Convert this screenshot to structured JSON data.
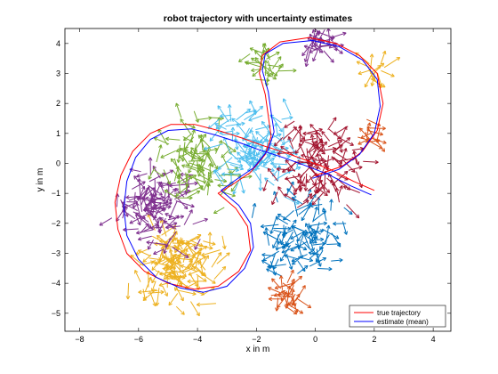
{
  "chart_data": {
    "type": "line",
    "title": "robot trajectory with uncertainty estimates",
    "xlabel": "x in m",
    "ylabel": "y in m",
    "xlim": [
      -8.5,
      4.6
    ],
    "ylim": [
      -5.6,
      4.5
    ],
    "xticks": [
      -8,
      -6,
      -4,
      -2,
      0,
      2,
      4
    ],
    "yticks": [
      -5,
      -4,
      -3,
      -2,
      -1,
      0,
      1,
      2,
      3,
      4
    ],
    "grid": false,
    "legend_position": "bottom-right",
    "series": [
      {
        "name": "true trajectory",
        "color": "#ff0000",
        "points": [
          [
            2.0,
            -0.9
          ],
          [
            1.3,
            -0.6
          ],
          [
            0.5,
            -0.2
          ],
          [
            -0.3,
            0.1
          ],
          [
            -1.0,
            0.35
          ],
          [
            -1.8,
            0.6
          ],
          [
            -2.5,
            0.85
          ],
          [
            -3.3,
            1.1
          ],
          [
            -4.1,
            1.3
          ],
          [
            -4.9,
            1.3
          ],
          [
            -5.6,
            1.0
          ],
          [
            -6.2,
            0.4
          ],
          [
            -6.6,
            -0.4
          ],
          [
            -6.8,
            -1.3
          ],
          [
            -6.7,
            -2.2
          ],
          [
            -6.4,
            -3.0
          ],
          [
            -5.8,
            -3.6
          ],
          [
            -5.0,
            -4.0
          ],
          [
            -4.1,
            -4.2
          ],
          [
            -3.3,
            -4.1
          ],
          [
            -2.6,
            -3.6
          ],
          [
            -2.2,
            -2.9
          ],
          [
            -2.3,
            -2.1
          ],
          [
            -2.7,
            -1.5
          ],
          [
            -3.3,
            -1.0
          ],
          [
            -2.8,
            -0.7
          ],
          [
            -2.2,
            -0.3
          ],
          [
            -1.7,
            0.3
          ],
          [
            -1.5,
            0.9
          ],
          [
            -1.6,
            1.6
          ],
          [
            -1.7,
            2.3
          ],
          [
            -1.9,
            3.0
          ],
          [
            -1.8,
            3.6
          ],
          [
            -1.2,
            4.05
          ],
          [
            -0.2,
            4.2
          ],
          [
            0.7,
            4.0
          ],
          [
            1.5,
            3.6
          ],
          [
            2.1,
            3.0
          ],
          [
            2.3,
            2.0
          ],
          [
            2.1,
            1.1
          ],
          [
            1.6,
            0.4
          ],
          [
            0.9,
            -0.1
          ],
          [
            0.0,
            -0.4
          ]
        ]
      },
      {
        "name": "estimate (mean)",
        "color": "#0000ff",
        "points": [
          [
            1.9,
            -1.05
          ],
          [
            1.2,
            -0.75
          ],
          [
            0.4,
            -0.35
          ],
          [
            -0.4,
            -0.05
          ],
          [
            -1.1,
            0.2
          ],
          [
            -1.9,
            0.45
          ],
          [
            -2.6,
            0.7
          ],
          [
            -3.4,
            0.95
          ],
          [
            -4.2,
            1.15
          ],
          [
            -5.0,
            1.1
          ],
          [
            -5.6,
            0.8
          ],
          [
            -6.1,
            0.2
          ],
          [
            -6.4,
            -0.6
          ],
          [
            -6.5,
            -1.5
          ],
          [
            -6.4,
            -2.4
          ],
          [
            -6.0,
            -3.2
          ],
          [
            -5.4,
            -3.8
          ],
          [
            -4.6,
            -4.15
          ],
          [
            -3.8,
            -4.3
          ],
          [
            -3.0,
            -4.1
          ],
          [
            -2.4,
            -3.5
          ],
          [
            -2.1,
            -2.8
          ],
          [
            -2.2,
            -2.0
          ],
          [
            -2.6,
            -1.4
          ],
          [
            -3.2,
            -0.9
          ],
          [
            -2.7,
            -0.55
          ],
          [
            -2.1,
            -0.15
          ],
          [
            -1.6,
            0.45
          ],
          [
            -1.4,
            1.05
          ],
          [
            -1.5,
            1.7
          ],
          [
            -1.6,
            2.4
          ],
          [
            -1.8,
            3.1
          ],
          [
            -1.7,
            3.65
          ],
          [
            -1.1,
            4.0
          ],
          [
            -0.1,
            4.1
          ],
          [
            0.8,
            3.9
          ],
          [
            1.6,
            3.45
          ],
          [
            2.1,
            2.8
          ],
          [
            2.2,
            1.9
          ],
          [
            2.0,
            1.0
          ],
          [
            1.5,
            0.3
          ],
          [
            0.8,
            -0.2
          ],
          [
            -0.1,
            -0.5
          ]
        ]
      }
    ],
    "uncertainty_arrows": [
      {
        "color": "#0072bd",
        "center": [
          -0.5,
          -2.4
        ],
        "count": 95
      },
      {
        "color": "#d95319",
        "center": [
          -0.9,
          -4.4
        ],
        "count": 30
      },
      {
        "color": "#edb120",
        "center": [
          -4.7,
          -3.4
        ],
        "count": 130
      },
      {
        "color": "#7e2f8e",
        "center": [
          -5.6,
          -1.4
        ],
        "count": 105
      },
      {
        "color": "#77ac30",
        "center": [
          -3.9,
          0.1
        ],
        "count": 90
      },
      {
        "color": "#4dbeee",
        "center": [
          -2.0,
          0.5
        ],
        "count": 110
      },
      {
        "color": "#a2142f",
        "center": [
          0.1,
          0.0
        ],
        "count": 110
      },
      {
        "color": "#7e2f8e",
        "center": [
          0.2,
          4.05
        ],
        "count": 30
      },
      {
        "color": "#77ac30",
        "center": [
          -1.7,
          3.3
        ],
        "count": 25
      },
      {
        "color": "#edb120",
        "center": [
          2.0,
          3.0
        ],
        "count": 15
      },
      {
        "color": "#d95319",
        "center": [
          1.8,
          0.9
        ],
        "count": 15
      }
    ]
  }
}
